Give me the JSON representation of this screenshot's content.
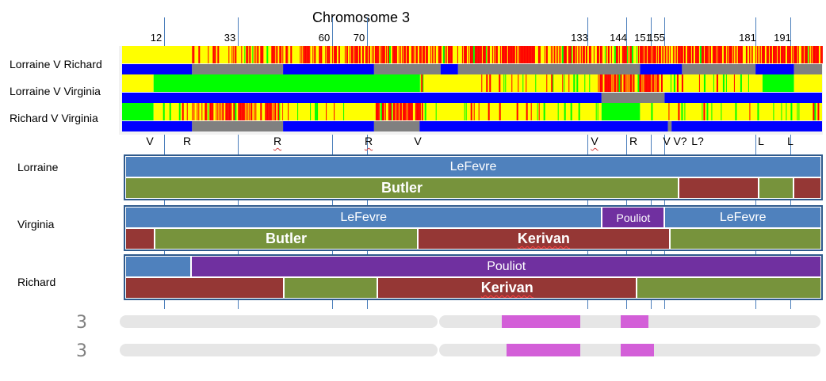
{
  "title": "Chromosome 3",
  "chrom_max": 200,
  "positions": [
    {
      "label": "12",
      "pos": 12
    },
    {
      "label": "33",
      "pos": 33
    },
    {
      "label": "60",
      "pos": 60
    },
    {
      "label": "70",
      "pos": 70
    },
    {
      "label": "133",
      "pos": 133
    },
    {
      "label": "144",
      "pos": 144
    },
    {
      "label": "151",
      "pos": 151
    },
    {
      "label": "155",
      "pos": 155
    },
    {
      "label": "181",
      "pos": 181
    },
    {
      "label": "191",
      "pos": 191
    }
  ],
  "colors": {
    "fir": "#00ff00",
    "hir": "#ffff00",
    "none": "#ff0000",
    "match_blue": "#0000ff",
    "match_grey": "#808080",
    "lefevre": "#4f81bd",
    "butler": "#77933c",
    "kerivan": "#953735",
    "pouliot": "#7030a0",
    "highlight": "#d35fd8"
  },
  "comparisons": [
    {
      "name": "Lorraine V Richard",
      "top": [
        {
          "start": 0,
          "end": 20,
          "type": "hir"
        },
        {
          "start": 20,
          "end": 60,
          "type": "hir_none"
        },
        {
          "start": 60,
          "end": 200,
          "type": "hir_none_heavy"
        }
      ],
      "bottom": [
        {
          "start": 0,
          "end": 20,
          "type": "blue"
        },
        {
          "start": 20,
          "end": 46,
          "type": "grey"
        },
        {
          "start": 46,
          "end": 72,
          "type": "blue"
        },
        {
          "start": 72,
          "end": 91,
          "type": "grey"
        },
        {
          "start": 91,
          "end": 96,
          "type": "blue"
        },
        {
          "start": 96,
          "end": 148,
          "type": "grey"
        },
        {
          "start": 148,
          "end": 160,
          "type": "blue"
        },
        {
          "start": 160,
          "end": 181,
          "type": "grey"
        },
        {
          "start": 181,
          "end": 192,
          "type": "blue"
        },
        {
          "start": 192,
          "end": 200,
          "type": "grey"
        }
      ]
    },
    {
      "name": "Lorraine V Virginia",
      "top": [
        {
          "start": 0,
          "end": 9,
          "type": "hir"
        },
        {
          "start": 9,
          "end": 85,
          "type": "fir"
        },
        {
          "start": 85,
          "end": 136,
          "type": "hir_sparse"
        },
        {
          "start": 136,
          "end": 154,
          "type": "hir_none_heavy"
        },
        {
          "start": 154,
          "end": 183,
          "type": "hir_sparse"
        },
        {
          "start": 183,
          "end": 192,
          "type": "fir"
        },
        {
          "start": 192,
          "end": 200,
          "type": "hir"
        }
      ],
      "bottom": [
        {
          "start": 0,
          "end": 137,
          "type": "blue"
        },
        {
          "start": 137,
          "end": 155,
          "type": "grey"
        },
        {
          "start": 155,
          "end": 200,
          "type": "blue"
        }
      ]
    },
    {
      "name": "Richard V Virginia",
      "top": [
        {
          "start": 0,
          "end": 9,
          "type": "fir"
        },
        {
          "start": 9,
          "end": 20,
          "type": "hir_sparse"
        },
        {
          "start": 20,
          "end": 46,
          "type": "hir_none_heavy"
        },
        {
          "start": 46,
          "end": 72,
          "type": "hir_sparse"
        },
        {
          "start": 72,
          "end": 86,
          "type": "hir_none_heavy"
        },
        {
          "start": 86,
          "end": 137,
          "type": "hir_sparse"
        },
        {
          "start": 137,
          "end": 148,
          "type": "fir"
        },
        {
          "start": 148,
          "end": 200,
          "type": "hir_sparse"
        }
      ],
      "bottom": [
        {
          "start": 0,
          "end": 20,
          "type": "blue"
        },
        {
          "start": 20,
          "end": 46,
          "type": "grey"
        },
        {
          "start": 46,
          "end": 72,
          "type": "blue"
        },
        {
          "start": 72,
          "end": 85,
          "type": "grey"
        },
        {
          "start": 85,
          "end": 156,
          "type": "blue"
        },
        {
          "start": 156,
          "end": 157,
          "type": "grey"
        },
        {
          "start": 157,
          "end": 200,
          "type": "blue"
        }
      ]
    }
  ],
  "letters": [
    {
      "text": "V",
      "pos": 8,
      "sq": false
    },
    {
      "text": "R",
      "pos": 18.5,
      "sq": false
    },
    {
      "text": "R",
      "pos": 44.5,
      "sq": true
    },
    {
      "text": "R",
      "pos": 70.5,
      "sq": true
    },
    {
      "text": "V",
      "pos": 84.5,
      "sq": false
    },
    {
      "text": "V",
      "pos": 135,
      "sq": true
    },
    {
      "text": "R",
      "pos": 146,
      "sq": false
    },
    {
      "text": "V",
      "pos": 155.5,
      "sq": false
    },
    {
      "text": "V?",
      "pos": 159.5,
      "sq": false
    },
    {
      "text": "L?",
      "pos": 164.5,
      "sq": false
    },
    {
      "text": "L",
      "pos": 182.5,
      "sq": false
    },
    {
      "text": "L",
      "pos": 191,
      "sq": false
    }
  ],
  "persons": [
    {
      "name": "Lorraine",
      "rows": [
        [
          {
            "start": 0,
            "end": 200,
            "label": "LeFevre",
            "color": "lefevre",
            "size": "med",
            "sq": false
          }
        ],
        [
          {
            "start": 0,
            "end": 159,
            "label": "Butler",
            "color": "butler",
            "size": "big",
            "sq": false
          },
          {
            "start": 159,
            "end": 182,
            "label": "",
            "color": "kerivan",
            "size": "med",
            "sq": false
          },
          {
            "start": 182,
            "end": 192,
            "label": "",
            "color": "butler",
            "size": "med",
            "sq": false
          },
          {
            "start": 192,
            "end": 200,
            "label": "",
            "color": "kerivan",
            "size": "med",
            "sq": false
          }
        ]
      ]
    },
    {
      "name": "Virginia",
      "rows": [
        [
          {
            "start": 0,
            "end": 137,
            "label": "LeFevre",
            "color": "lefevre",
            "size": "med",
            "sq": false
          },
          {
            "start": 137,
            "end": 155,
            "label": "Pouliot",
            "color": "pouliot",
            "size": "sm",
            "sq": false
          },
          {
            "start": 155,
            "end": 200,
            "label": "LeFevre",
            "color": "lefevre",
            "size": "med",
            "sq": false
          }
        ],
        [
          {
            "start": 0,
            "end": 8.5,
            "label": "",
            "color": "kerivan",
            "size": "med",
            "sq": false
          },
          {
            "start": 8.5,
            "end": 84,
            "label": "Butler",
            "color": "butler",
            "size": "big",
            "sq": false
          },
          {
            "start": 84,
            "end": 156.5,
            "label": "Kerivan",
            "color": "kerivan",
            "size": "big",
            "sq": true
          },
          {
            "start": 156.5,
            "end": 200,
            "label": "",
            "color": "butler",
            "size": "med",
            "sq": false
          }
        ]
      ]
    },
    {
      "name": "Richard",
      "rows": [
        [
          {
            "start": 0,
            "end": 19,
            "label": "",
            "color": "lefevre",
            "size": "med",
            "sq": false
          },
          {
            "start": 19,
            "end": 200,
            "label": "Pouliot",
            "color": "pouliot",
            "size": "med",
            "sq": false
          }
        ],
        [
          {
            "start": 0,
            "end": 45.5,
            "label": "",
            "color": "kerivan",
            "size": "med",
            "sq": false
          },
          {
            "start": 45.5,
            "end": 72.5,
            "label": "",
            "color": "butler",
            "size": "med",
            "sq": false
          },
          {
            "start": 72.5,
            "end": 147,
            "label": "Kerivan",
            "color": "kerivan",
            "size": "big",
            "sq": true
          },
          {
            "start": 147,
            "end": 200,
            "label": "",
            "color": "butler",
            "size": "med",
            "sq": false
          }
        ]
      ]
    }
  ],
  "chromosome_bars": [
    {
      "label": "3",
      "highlights": [
        {
          "start": 109,
          "end": 131.5
        },
        {
          "start": 143,
          "end": 151
        }
      ]
    },
    {
      "label": "3",
      "highlights": [
        {
          "start": 110.5,
          "end": 131.5
        },
        {
          "start": 143,
          "end": 152.5
        }
      ]
    }
  ]
}
